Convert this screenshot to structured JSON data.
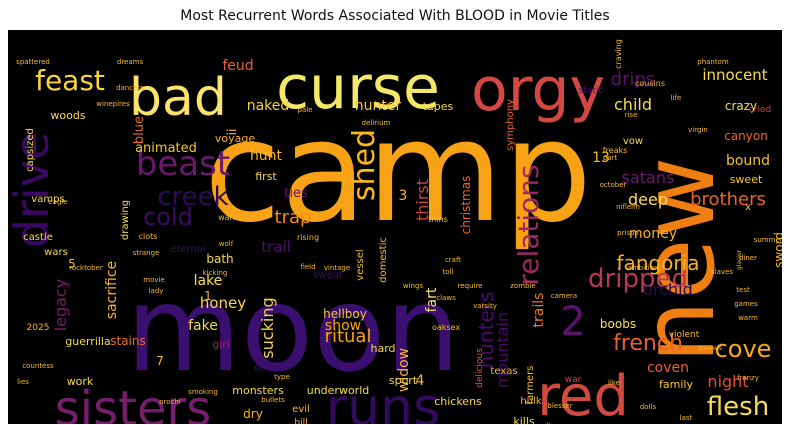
{
  "chart_data": {
    "type": "wordcloud",
    "title": "Most Recurrent Words Associated With BLOOD in Movie Titles",
    "background": "#000000",
    "colormap": "inferno",
    "words": [
      {
        "text": "camp",
        "weight": 100
      },
      {
        "text": "moon",
        "weight": 82
      },
      {
        "text": "new",
        "weight": 60
      },
      {
        "text": "curse",
        "weight": 44
      },
      {
        "text": "orgy",
        "weight": 40
      },
      {
        "text": "bad",
        "weight": 38
      },
      {
        "text": "red",
        "weight": 37
      },
      {
        "text": "drive",
        "weight": 34
      },
      {
        "text": "sisters",
        "weight": 30
      },
      {
        "text": "runs",
        "weight": 30
      },
      {
        "text": "beast",
        "weight": 26
      },
      {
        "text": "2",
        "weight": 24
      },
      {
        "text": "shed",
        "weight": 22
      },
      {
        "text": "feast",
        "weight": 20
      },
      {
        "text": "relations",
        "weight": 20
      },
      {
        "text": "dripped",
        "weight": 19
      },
      {
        "text": "flesh",
        "weight": 18
      },
      {
        "text": "creek",
        "weight": 18
      },
      {
        "text": "cove",
        "weight": 17
      },
      {
        "text": "cold",
        "weight": 17
      },
      {
        "text": "french",
        "weight": 16
      },
      {
        "text": "fangoria",
        "weight": 15
      },
      {
        "text": "hunters",
        "weight": 15
      },
      {
        "text": "drips",
        "weight": 14
      },
      {
        "text": "brothers",
        "weight": 13
      },
      {
        "text": "satans",
        "weight": 13
      },
      {
        "text": "thirst",
        "weight": 13
      },
      {
        "text": "child",
        "weight": 12
      },
      {
        "text": "ritual",
        "weight": 12
      },
      {
        "text": "orchid",
        "weight": 12
      },
      {
        "text": "trails",
        "weight": 12
      },
      {
        "text": "mountain",
        "weight": 12
      },
      {
        "text": "sacrifice",
        "weight": 12
      },
      {
        "text": "innocent",
        "weight": 11
      },
      {
        "text": "feud",
        "weight": 11
      },
      {
        "text": "trap",
        "weight": 11
      },
      {
        "text": "deep",
        "weight": 11
      },
      {
        "text": "night",
        "weight": 11
      },
      {
        "text": "widow",
        "weight": 11
      },
      {
        "text": "sucking",
        "weight": 11
      },
      {
        "text": "coven",
        "weight": 11
      },
      {
        "text": "legacy",
        "weight": 11
      },
      {
        "text": "hunter",
        "weight": 10
      },
      {
        "text": "naked",
        "weight": 10
      },
      {
        "text": "blue",
        "weight": 10
      },
      {
        "text": "hunt",
        "weight": 10
      },
      {
        "text": "money",
        "weight": 10
      },
      {
        "text": "lake",
        "weight": 10
      },
      {
        "text": "honey",
        "weight": 10
      },
      {
        "text": "trail",
        "weight": 10
      },
      {
        "text": "fake",
        "weight": 10
      },
      {
        "text": "show",
        "weight": 10
      },
      {
        "text": "fart",
        "weight": 10
      },
      {
        "text": "bound",
        "weight": 10
      },
      {
        "text": "animated",
        "weight": 9
      },
      {
        "text": "ties",
        "weight": 9
      },
      {
        "text": "stains",
        "weight": 9
      },
      {
        "text": "hellboy",
        "weight": 9
      },
      {
        "text": "crazy",
        "weight": 9
      },
      {
        "text": "sword",
        "weight": 9
      },
      {
        "text": "christmas",
        "weight": 9
      },
      {
        "text": "canyon",
        "weight": 9
      },
      {
        "text": "dry",
        "weight": 9
      },
      {
        "text": "boobs",
        "weight": 9
      },
      {
        "text": "bath",
        "weight": 9
      },
      {
        "text": "family",
        "weight": 8
      },
      {
        "text": "monsters",
        "weight": 8
      },
      {
        "text": "underworld",
        "weight": 8
      },
      {
        "text": "chickens",
        "weight": 8
      },
      {
        "text": "woods",
        "weight": 8
      },
      {
        "text": "voyage",
        "weight": 8
      },
      {
        "text": "sweet",
        "weight": 8
      },
      {
        "text": "girl",
        "weight": 8
      },
      {
        "text": "hard",
        "weight": 8
      },
      {
        "text": "kills",
        "weight": 8
      },
      {
        "text": "sport",
        "weight": 8
      },
      {
        "text": "guerrilla",
        "weight": 8
      },
      {
        "text": "symphony",
        "weight": 8
      },
      {
        "text": "first",
        "weight": 8
      },
      {
        "text": "tapes",
        "weight": 8
      },
      {
        "text": "work",
        "weight": 8
      },
      {
        "text": "castle",
        "weight": 8
      },
      {
        "text": "wars",
        "weight": 8
      },
      {
        "text": "vamps",
        "weight": 8
      },
      {
        "text": "capsized",
        "weight": 8
      },
      {
        "text": "drawing",
        "weight": 8
      },
      {
        "text": "eternal",
        "weight": 8
      },
      {
        "text": "vessel",
        "weight": 8
      },
      {
        "text": "domestic",
        "weight": 8
      },
      {
        "text": "farmers",
        "weight": 8
      },
      {
        "text": "evil",
        "weight": 8
      },
      {
        "text": "hulk",
        "weight": 7
      },
      {
        "text": "texas",
        "weight": 7
      },
      {
        "text": "vow",
        "weight": 7
      },
      {
        "text": "sweat",
        "weight": 7
      },
      {
        "text": "static",
        "weight": 7
      },
      {
        "text": "violent",
        "weight": 7
      },
      {
        "text": "bill",
        "weight": 7
      },
      {
        "text": "delicious",
        "weight": 7
      },
      {
        "text": "demon",
        "weight": 7
      },
      {
        "text": "war",
        "weight": 7
      },
      {
        "text": "2025",
        "weight": 7
      },
      {
        "text": "cried",
        "weight": 7
      },
      {
        "text": "craving",
        "weight": 7
      },
      {
        "text": "freaks",
        "weight": 7
      },
      {
        "text": "thins",
        "weight": 7
      },
      {
        "text": "rising",
        "weight": 7
      },
      {
        "text": "wants",
        "weight": 7
      },
      {
        "text": "clots",
        "weight": 7
      },
      {
        "text": "cousins",
        "weight": 7
      },
      {
        "text": "eagle",
        "weight": 6
      },
      {
        "text": "wolf",
        "weight": 6
      },
      {
        "text": "strange",
        "weight": 6
      },
      {
        "text": "kicking",
        "weight": 6
      },
      {
        "text": "rocktober",
        "weight": 6
      },
      {
        "text": "field",
        "weight": 6
      },
      {
        "text": "craft",
        "weight": 6
      },
      {
        "text": "toll",
        "weight": 6
      },
      {
        "text": "wings",
        "weight": 6
      },
      {
        "text": "require",
        "weight": 6
      },
      {
        "text": "zombie",
        "weight": 6
      },
      {
        "text": "ambition",
        "weight": 6
      },
      {
        "text": "slaves",
        "weight": 6
      },
      {
        "text": "camera",
        "weight": 6
      },
      {
        "text": "test",
        "weight": 6
      },
      {
        "text": "games",
        "weight": 6
      },
      {
        "text": "warm",
        "weight": 6
      },
      {
        "text": "diner",
        "weight": 6
      },
      {
        "text": "glacier",
        "weight": 6
      },
      {
        "text": "drinkers",
        "weight": 6
      },
      {
        "text": "like",
        "weight": 6
      },
      {
        "text": "last",
        "weight": 6
      },
      {
        "text": "dolls",
        "weight": 6
      },
      {
        "text": "donors",
        "weight": 6
      },
      {
        "text": "blesser",
        "weight": 6
      },
      {
        "text": "cult",
        "weight": 6
      },
      {
        "text": "claws",
        "weight": 6
      },
      {
        "text": "varsity",
        "weight": 6
      },
      {
        "text": "oaksex",
        "weight": 6
      },
      {
        "text": "countess",
        "weight": 6
      },
      {
        "text": "lies",
        "weight": 6
      },
      {
        "text": "let",
        "weight": 6
      },
      {
        "text": "orochi",
        "weight": 6
      },
      {
        "text": "smoking",
        "weight": 6
      },
      {
        "text": "bullets",
        "weight": 6
      },
      {
        "text": "type",
        "weight": 6
      },
      {
        "text": "lady",
        "weight": 6
      },
      {
        "text": "movie",
        "weight": 6
      },
      {
        "text": "vintage",
        "weight": 6
      },
      {
        "text": "dancers",
        "weight": 6
      },
      {
        "text": "dreams",
        "weight": 6
      },
      {
        "text": "winepires",
        "weight": 6
      },
      {
        "text": "spattered",
        "weight": 6
      },
      {
        "text": "pale",
        "weight": 6
      },
      {
        "text": "delirium",
        "weight": 6
      },
      {
        "text": "phantom",
        "weight": 6
      },
      {
        "text": "virgin",
        "weight": 6
      },
      {
        "text": "part",
        "weight": 6
      },
      {
        "text": "october",
        "weight": 6
      },
      {
        "text": "nifleim",
        "weight": 6
      },
      {
        "text": "prison",
        "weight": 6
      },
      {
        "text": "life",
        "weight": 6
      },
      {
        "text": "rise",
        "weight": 6
      },
      {
        "text": "summers",
        "weight": 6
      },
      {
        "text": "frenzy",
        "weight": 6
      },
      {
        "text": "x",
        "weight": 6
      },
      {
        "text": "13",
        "weight": 8
      },
      {
        "text": "3",
        "weight": 8
      },
      {
        "text": "4",
        "weight": 7
      },
      {
        "text": "5",
        "weight": 7
      },
      {
        "text": "7",
        "weight": 7
      },
      {
        "text": "1",
        "weight": 7
      },
      {
        "text": "ii",
        "weight": 7
      }
    ]
  }
}
